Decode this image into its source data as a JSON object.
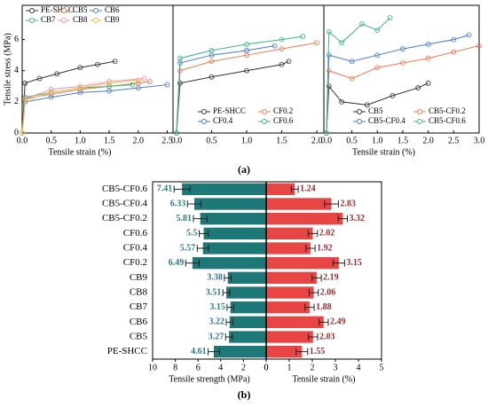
{
  "figure_labels": [
    "(a)",
    "(b)"
  ],
  "chart_data": [
    {
      "type": "line",
      "ylabel": "Tensile stress (MPa)",
      "xlabel": "Tensile strain (%)",
      "ylim": [
        0,
        8.2
      ],
      "yticks": [
        0,
        2,
        4,
        6
      ],
      "xlim": [
        0,
        2.6
      ],
      "xticks": [
        {
          "value": 0,
          "label": "0.0"
        },
        0.5,
        {
          "value": 1,
          "label": "1.0"
        },
        1.5,
        {
          "value": 2,
          "label": "2.0"
        },
        2.5
      ],
      "legend": "upper left",
      "series": [
        {
          "name": "PE-SHCC",
          "color": "#333333",
          "x": [
            0,
            0.05,
            0.3,
            0.6,
            1.0,
            1.3,
            1.6
          ],
          "values": [
            0,
            3.2,
            3.5,
            3.8,
            4.2,
            4.4,
            4.6
          ]
        },
        {
          "name": "CB5",
          "color": "#f07850",
          "x": [
            0,
            0.05,
            0.5,
            1.0,
            1.5,
            2.0,
            2.2
          ],
          "values": [
            0,
            2.2,
            2.5,
            2.8,
            3.0,
            3.2,
            3.3
          ]
        },
        {
          "name": "CB6",
          "color": "#4a78d0",
          "x": [
            0,
            0.05,
            0.5,
            1.0,
            1.5,
            2.0,
            2.5
          ],
          "values": [
            0,
            2.0,
            2.3,
            2.6,
            2.7,
            2.9,
            3.1
          ]
        },
        {
          "name": "CB7",
          "color": "#3cb38a",
          "x": [
            0,
            0.05,
            0.5,
            1.0,
            1.5,
            1.9
          ],
          "values": [
            0,
            2.3,
            2.6,
            2.9,
            3.0,
            3.1
          ]
        },
        {
          "name": "CB8",
          "color": "#f090c0",
          "x": [
            0,
            0.05,
            0.5,
            1.0,
            1.5,
            2.1
          ],
          "values": [
            0,
            2.2,
            2.8,
            3.0,
            3.3,
            3.5
          ]
        },
        {
          "name": "CB9",
          "color": "#e8c040",
          "x": [
            0,
            0.05,
            0.5,
            1.0,
            1.5,
            2.0
          ],
          "values": [
            0,
            2.1,
            2.6,
            2.9,
            3.2,
            3.4
          ]
        }
      ]
    },
    {
      "type": "line",
      "ylim": [
        0,
        8.2
      ],
      "xlim": [
        -0.05,
        2.1
      ],
      "xticks": [
        {
          "value": 0,
          "label": "0.0"
        },
        0.5,
        {
          "value": 1,
          "label": "1.0"
        },
        1.5,
        {
          "value": 2,
          "label": "2.0"
        }
      ],
      "legend": "lower right",
      "series": [
        {
          "name": "PE-SHCC",
          "color": "#333333",
          "x": [
            0,
            0.05,
            0.5,
            1.0,
            1.5,
            1.6
          ],
          "values": [
            0,
            3.2,
            3.6,
            4.0,
            4.4,
            4.6
          ]
        },
        {
          "name": "CF0.2",
          "color": "#f07850",
          "x": [
            0,
            0.05,
            0.5,
            1.0,
            1.5,
            2.0
          ],
          "values": [
            0,
            4.0,
            4.6,
            5.0,
            5.4,
            5.8
          ]
        },
        {
          "name": "CF0.4",
          "color": "#4a78d0",
          "x": [
            0,
            0.05,
            0.5,
            1.0,
            1.4
          ],
          "values": [
            0,
            4.5,
            5.0,
            5.3,
            5.6
          ]
        },
        {
          "name": "CF0.6",
          "color": "#3cb38a",
          "x": [
            0,
            0.05,
            0.5,
            1.0,
            1.5,
            1.8
          ],
          "values": [
            0,
            4.8,
            5.3,
            5.7,
            6.0,
            6.2
          ]
        }
      ]
    },
    {
      "type": "line",
      "xlabel": "Tensile strain (%)",
      "ylim": [
        0,
        8.2
      ],
      "xlim": [
        -0.05,
        3.0
      ],
      "xticks": [
        {
          "value": 0,
          "label": "0.0"
        },
        0.5,
        {
          "value": 1,
          "label": "1.0"
        },
        1.5,
        {
          "value": 2,
          "label": "2.0"
        },
        2.5,
        {
          "value": 3,
          "label": "3.0"
        }
      ],
      "legend": "lower right",
      "series": [
        {
          "name": "CB5",
          "color": "#333333",
          "x": [
            0,
            0.05,
            0.3,
            0.8,
            1.3,
            1.8,
            2.0
          ],
          "values": [
            0,
            3.0,
            2.0,
            1.8,
            2.4,
            2.9,
            3.2
          ]
        },
        {
          "name": "CB5-CF0.2",
          "color": "#f07850",
          "x": [
            0,
            0.05,
            0.5,
            1.0,
            1.5,
            2.0,
            2.5,
            3.0
          ],
          "values": [
            0,
            4.0,
            3.5,
            4.2,
            4.5,
            4.8,
            5.2,
            5.6
          ]
        },
        {
          "name": "CB5-CF0.4",
          "color": "#4a78d0",
          "x": [
            0,
            0.05,
            0.5,
            1.0,
            1.5,
            2.0,
            2.5,
            2.8
          ],
          "values": [
            0,
            5.0,
            4.6,
            5.0,
            5.4,
            5.7,
            6.0,
            6.3
          ]
        },
        {
          "name": "CB5-CF0.6",
          "color": "#3cb38a",
          "x": [
            0,
            0.05,
            0.3,
            0.7,
            1.0,
            1.25
          ],
          "values": [
            0,
            6.5,
            5.8,
            7.0,
            6.6,
            7.4
          ]
        }
      ]
    },
    {
      "type": "butterfly",
      "categories": [
        "CB5-CF0.6",
        "CB5-CF0.4",
        "CB5-CF0.2",
        "CF0.6",
        "CF0.4",
        "CF0.2",
        "CB9",
        "CB8",
        "CB7",
        "CB6",
        "CB5",
        "PE-SHCC"
      ],
      "series": [
        {
          "xlabel": "Tensile strength (MPa)",
          "color": "#1e7878",
          "label_color": "#2a7a8a",
          "xlim": [
            0,
            10
          ],
          "xticks": [
            10,
            8,
            6,
            4,
            2,
            0
          ],
          "values": [
            7.41,
            6.33,
            5.81,
            5.5,
            5.57,
            6.49,
            3.38,
            3.51,
            3.15,
            3.22,
            3.27,
            4.61
          ],
          "errors": [
            0.7,
            0.6,
            0.6,
            0.4,
            0.5,
            0.6,
            0.3,
            0.3,
            0.3,
            0.3,
            0.3,
            0.5
          ]
        },
        {
          "xlabel": "Tensile strain (%)",
          "color": "#e84545",
          "label_color": "#9a2a2a",
          "xlim": [
            0,
            5
          ],
          "xticks": [
            0,
            1,
            2,
            3,
            4,
            5
          ],
          "values": [
            1.24,
            2.83,
            3.32,
            2.02,
            1.92,
            3.15,
            2.19,
            2.06,
            1.88,
            2.49,
            2.03,
            1.55
          ],
          "errors": [
            0.15,
            0.3,
            0.2,
            0.2,
            0.2,
            0.25,
            0.2,
            0.2,
            0.2,
            0.2,
            0.2,
            0.25
          ]
        }
      ]
    }
  ]
}
